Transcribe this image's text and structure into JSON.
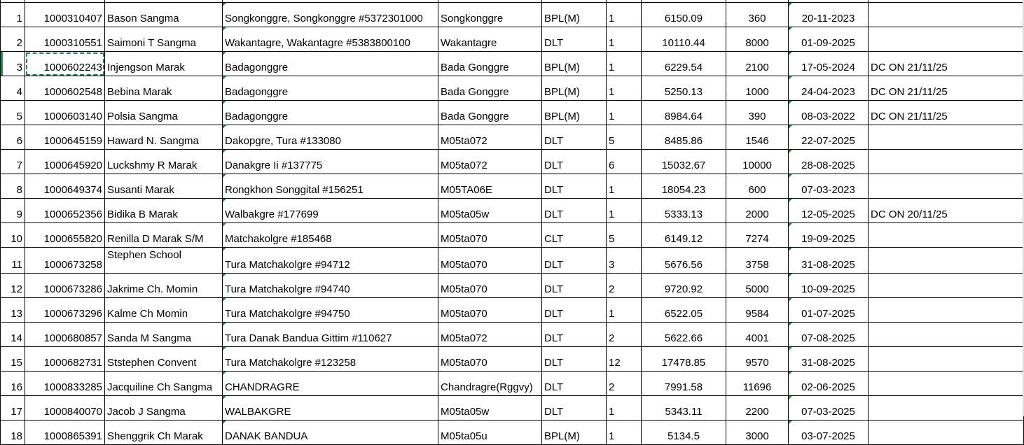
{
  "colors": {
    "selection": "#1e8c5a",
    "error_indicator": "#1e8c2a"
  },
  "selected_cell": {
    "row": 3,
    "column": "consumer_no"
  },
  "rows": [
    {
      "sl": "1",
      "consumer_no": "1000310407",
      "name": "Bason Sangma",
      "address": "Songkonggre, Songkonggre #5372301000",
      "area": "Songkonggre",
      "category": "BPL(M)",
      "load": "1",
      "amount": "6150.09",
      "paid": "360",
      "date": "20-11-2023",
      "remarks": ""
    },
    {
      "sl": "2",
      "consumer_no": "1000310551",
      "name": "Saimoni T Sangma",
      "address": "Wakantagre, Wakantagre #5383800100",
      "area": "Wakantagre",
      "category": "DLT",
      "load": "1",
      "amount": "10110.44",
      "paid": "8000",
      "date": "01-09-2025",
      "remarks": ""
    },
    {
      "sl": "3",
      "consumer_no": "1000602243",
      "name": "Injengson Marak",
      "address": "Badagonggre",
      "area": "Bada Gonggre",
      "category": "BPL(M)",
      "load": "1",
      "amount": "6229.54",
      "paid": "2100",
      "date": "17-05-2024",
      "remarks": "DC ON 21/11/25"
    },
    {
      "sl": "4",
      "consumer_no": "1000602548",
      "name": "Bebina Marak",
      "address": "Badagonggre",
      "area": "Bada Gonggre",
      "category": "BPL(M)",
      "load": "1",
      "amount": "5250.13",
      "paid": "1000",
      "date": "24-04-2023",
      "remarks": "DC ON 21/11/25"
    },
    {
      "sl": "5",
      "consumer_no": "1000603140",
      "name": "Polsia Sangma",
      "address": "Badagonggre",
      "area": "Bada Gonggre",
      "category": "BPL(M)",
      "load": "1",
      "amount": "8984.64",
      "paid": "390",
      "date": "08-03-2022",
      "remarks": "DC ON 21/11/25"
    },
    {
      "sl": "6",
      "consumer_no": "1000645159",
      "name": "Haward N. Sangma",
      "address": "Dakopgre, Tura  #133080",
      "area": "M05ta072",
      "category": "DLT",
      "load": "5",
      "amount": "8485.86",
      "paid": "1546",
      "date": "22-07-2025",
      "remarks": ""
    },
    {
      "sl": "7",
      "consumer_no": "1000645920",
      "name": "Luckshmy  R Marak",
      "address": "Danakgre Ii  #137775",
      "area": "M05ta072",
      "category": "DLT",
      "load": "6",
      "amount": "15032.67",
      "paid": "10000",
      "date": "28-08-2025",
      "remarks": ""
    },
    {
      "sl": "8",
      "consumer_no": "1000649374",
      "name": "Susanti  Marak",
      "address": "Rongkhon Songgital  #156251",
      "area": "M05TA06E",
      "category": "DLT",
      "load": "1",
      "amount": "18054.23",
      "paid": "600",
      "date": "07-03-2023",
      "remarks": ""
    },
    {
      "sl": "9",
      "consumer_no": "1000652356",
      "name": "Bidika  B Marak",
      "address": "Walbakgre  #177699",
      "area": "M05ta05w",
      "category": "DLT",
      "load": "1",
      "amount": "5333.13",
      "paid": "2000",
      "date": "12-05-2025",
      "remarks": "DC ON 20/11/25"
    },
    {
      "sl": "10",
      "consumer_no": "1000655820",
      "name": "Renilla  D Marak S/M",
      "address": "Matchakolgre  #185468",
      "area": "M05ta070",
      "category": "CLT",
      "load": "5",
      "amount": "6149.12",
      "paid": "7274",
      "date": "19-09-2025",
      "remarks": ""
    },
    {
      "sl": "11",
      "consumer_no": "1000673258",
      "name": "Stephen School",
      "address": "Tura Matchakolgre  #94712",
      "area": "M05ta070",
      "category": "DLT",
      "load": "3",
      "amount": "5676.56",
      "paid": "3758",
      "date": "31-08-2025",
      "remarks": ""
    },
    {
      "sl": "12",
      "consumer_no": "1000673286",
      "name": "Jakrime Ch. Momin",
      "address": "Tura Matchakolgre  #94740",
      "area": "M05ta070",
      "category": "DLT",
      "load": "2",
      "amount": "9720.92",
      "paid": "5000",
      "date": "10-09-2025",
      "remarks": ""
    },
    {
      "sl": "13",
      "consumer_no": "1000673296",
      "name": "Kalme Ch Momin",
      "address": "Tura Matchakolgre  #94750",
      "area": "M05ta070",
      "category": "DLT",
      "load": "1",
      "amount": "6522.05",
      "paid": "9584",
      "date": "01-07-2025",
      "remarks": ""
    },
    {
      "sl": "14",
      "consumer_no": "1000680857",
      "name": "Sanda M Sangma",
      "address": "Tura Danak Bandua Gittim  #110627",
      "area": "M05ta072",
      "category": "DLT",
      "load": "2",
      "amount": "5622.66",
      "paid": "4001",
      "date": "07-08-2025",
      "remarks": ""
    },
    {
      "sl": "15",
      "consumer_no": "1000682731",
      "name": "Ststephen  Convent",
      "address": "Tura Matchakolgre  #123258",
      "area": "M05ta070",
      "category": "DLT",
      "load": "12",
      "amount": "17478.85",
      "paid": "9570",
      "date": "31-08-2025",
      "remarks": ""
    },
    {
      "sl": "16",
      "consumer_no": "1000833285",
      "name": "Jacquiline Ch Sangma",
      "address": "CHANDRAGRE",
      "area": "Chandragre(Rggvy)",
      "category": "DLT",
      "load": "2",
      "amount": "7991.58",
      "paid": "11696",
      "date": "02-06-2025",
      "remarks": ""
    },
    {
      "sl": "17",
      "consumer_no": "1000840070",
      "name": "Jacob J Sangma",
      "address": "WALBAKGRE",
      "area": "M05ta05w",
      "category": "DLT",
      "load": "1",
      "amount": "5343.11",
      "paid": "2200",
      "date": "07-03-2025",
      "remarks": ""
    },
    {
      "sl": "18",
      "consumer_no": "1000865391",
      "name": "Shenggrik Ch Marak",
      "address": "DANAK BANDUA",
      "area": "M05ta05u",
      "category": "BPL(M)",
      "load": "1",
      "amount": "5134.5",
      "paid": "3000",
      "date": "03-07-2025",
      "remarks": ""
    }
  ]
}
